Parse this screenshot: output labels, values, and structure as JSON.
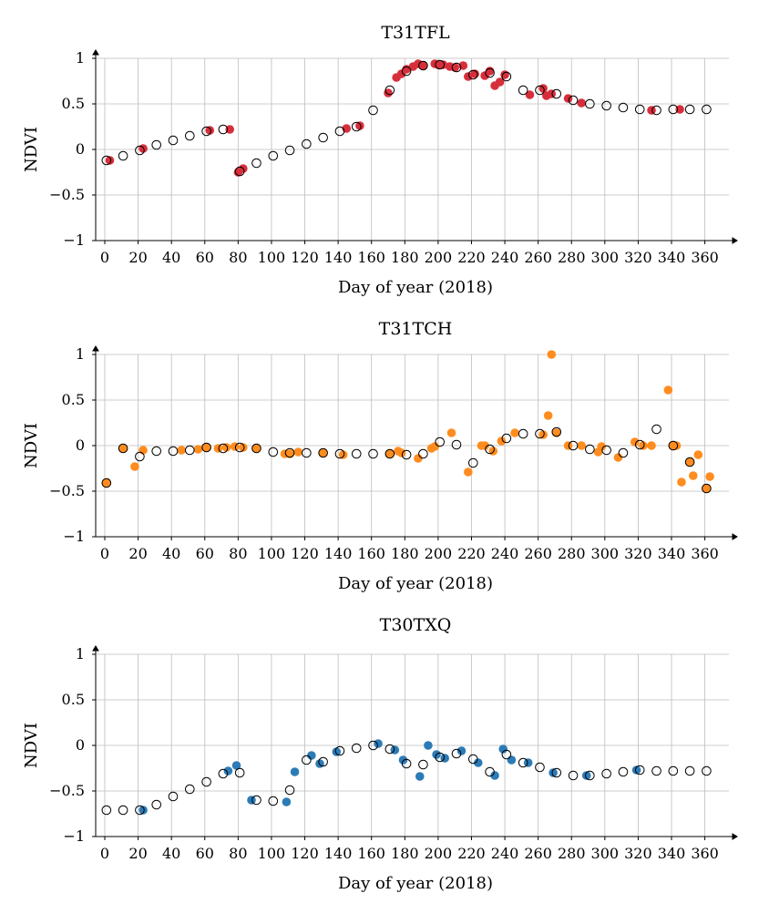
{
  "chart_data": [
    {
      "type": "scatter",
      "title": "T31TFL",
      "xlabel": "Day of year (2018)",
      "ylabel": "NDVI",
      "xlim": [
        0,
        369
      ],
      "ylim": [
        -1,
        1
      ],
      "xticks": [
        0,
        20,
        40,
        60,
        80,
        100,
        120,
        140,
        160,
        180,
        200,
        220,
        240,
        260,
        280,
        300,
        320,
        340,
        360
      ],
      "yticks": [
        -1,
        -0.5,
        0,
        0.5,
        1
      ],
      "ytick_labels": [
        "−1",
        "−0.5",
        "0",
        "0.5",
        "1"
      ],
      "grid": true,
      "series": [
        {
          "style": "filled",
          "color": "#d62f3b",
          "points": [
            [
              3,
              -0.12
            ],
            [
              23,
              0.01
            ],
            [
              63,
              0.21
            ],
            [
              75,
              0.22
            ],
            [
              80,
              -0.25
            ],
            [
              83,
              -0.21
            ],
            [
              145,
              0.23
            ],
            [
              153,
              0.26
            ],
            [
              170,
              0.62
            ],
            [
              175,
              0.79
            ],
            [
              178,
              0.83
            ],
            [
              181,
              0.88
            ],
            [
              185,
              0.91
            ],
            [
              188,
              0.94
            ],
            [
              191,
              0.92
            ],
            [
              198,
              0.94
            ],
            [
              200,
              0.93
            ],
            [
              203,
              0.93
            ],
            [
              207,
              0.91
            ],
            [
              210,
              0.9
            ],
            [
              215,
              0.92
            ],
            [
              218,
              0.8
            ],
            [
              222,
              0.83
            ],
            [
              228,
              0.81
            ],
            [
              231,
              0.86
            ],
            [
              234,
              0.7
            ],
            [
              237,
              0.74
            ],
            [
              240,
              0.82
            ],
            [
              255,
              0.6
            ],
            [
              263,
              0.67
            ],
            [
              265,
              0.59
            ],
            [
              268,
              0.61
            ],
            [
              278,
              0.56
            ],
            [
              286,
              0.51
            ],
            [
              328,
              0.43
            ],
            [
              345,
              0.44
            ]
          ]
        },
        {
          "style": "open",
          "color": "#000000",
          "points": [
            [
              1,
              -0.12
            ],
            [
              11,
              -0.07
            ],
            [
              21,
              -0.01
            ],
            [
              31,
              0.05
            ],
            [
              41,
              0.1
            ],
            [
              51,
              0.15
            ],
            [
              61,
              0.2
            ],
            [
              71,
              0.22
            ],
            [
              81,
              -0.24
            ],
            [
              91,
              -0.15
            ],
            [
              101,
              -0.07
            ],
            [
              111,
              -0.01
            ],
            [
              121,
              0.06
            ],
            [
              131,
              0.13
            ],
            [
              141,
              0.2
            ],
            [
              151,
              0.25
            ],
            [
              161,
              0.43
            ],
            [
              171,
              0.65
            ],
            [
              181,
              0.86
            ],
            [
              191,
              0.92
            ],
            [
              201,
              0.93
            ],
            [
              211,
              0.9
            ],
            [
              221,
              0.82
            ],
            [
              231,
              0.84
            ],
            [
              241,
              0.8
            ],
            [
              251,
              0.65
            ],
            [
              261,
              0.65
            ],
            [
              271,
              0.61
            ],
            [
              281,
              0.54
            ],
            [
              291,
              0.5
            ],
            [
              301,
              0.48
            ],
            [
              311,
              0.46
            ],
            [
              321,
              0.44
            ],
            [
              331,
              0.43
            ],
            [
              341,
              0.44
            ],
            [
              351,
              0.44
            ],
            [
              361,
              0.44
            ]
          ]
        }
      ]
    },
    {
      "type": "scatter",
      "title": "T31TCH",
      "xlabel": "Day of year (2018)",
      "ylabel": "NDVI",
      "xlim": [
        0,
        369
      ],
      "ylim": [
        -1,
        1
      ],
      "xticks": [
        0,
        20,
        40,
        60,
        80,
        100,
        120,
        140,
        160,
        180,
        200,
        220,
        240,
        260,
        280,
        300,
        320,
        340,
        360
      ],
      "yticks": [
        -1,
        -0.5,
        0,
        0.5,
        1
      ],
      "ytick_labels": [
        "−1",
        "−0.5",
        "0",
        "0.5",
        "1"
      ],
      "grid": true,
      "series": [
        {
          "style": "filled",
          "color": "#ff8c1e",
          "points": [
            [
              1,
              -0.41
            ],
            [
              11,
              -0.03
            ],
            [
              18,
              -0.23
            ],
            [
              23,
              -0.05
            ],
            [
              46,
              -0.05
            ],
            [
              56,
              -0.04
            ],
            [
              61,
              -0.02
            ],
            [
              68,
              -0.03
            ],
            [
              73,
              -0.02
            ],
            [
              78,
              -0.01
            ],
            [
              83,
              -0.02
            ],
            [
              91,
              -0.03
            ],
            [
              108,
              -0.09
            ],
            [
              111,
              -0.09
            ],
            [
              116,
              -0.07
            ],
            [
              131,
              -0.08
            ],
            [
              143,
              -0.1
            ],
            [
              171,
              -0.09
            ],
            [
              176,
              -0.06
            ],
            [
              178,
              -0.08
            ],
            [
              188,
              -0.14
            ],
            [
              196,
              -0.03
            ],
            [
              198,
              -0.01
            ],
            [
              208,
              0.14
            ],
            [
              218,
              -0.29
            ],
            [
              226,
              0.0
            ],
            [
              228,
              0.0
            ],
            [
              233,
              -0.06
            ],
            [
              238,
              0.05
            ],
            [
              246,
              0.14
            ],
            [
              263,
              0.12
            ],
            [
              266,
              0.33
            ],
            [
              268,
              1.0
            ],
            [
              271,
              0.14
            ],
            [
              278,
              0.0
            ],
            [
              286,
              0.0
            ],
            [
              296,
              -0.07
            ],
            [
              298,
              -0.01
            ],
            [
              308,
              -0.13
            ],
            [
              318,
              0.04
            ],
            [
              323,
              0.0
            ],
            [
              328,
              0.0
            ],
            [
              338,
              0.61
            ],
            [
              341,
              0.0
            ],
            [
              343,
              0.0
            ],
            [
              346,
              -0.4
            ],
            [
              351,
              -0.18
            ],
            [
              353,
              -0.33
            ],
            [
              356,
              -0.1
            ],
            [
              361,
              -0.47
            ],
            [
              363,
              -0.34
            ]
          ]
        },
        {
          "style": "open",
          "color": "#000000",
          "points": [
            [
              1,
              -0.41
            ],
            [
              11,
              -0.03
            ],
            [
              21,
              -0.12
            ],
            [
              31,
              -0.06
            ],
            [
              41,
              -0.06
            ],
            [
              51,
              -0.05
            ],
            [
              61,
              -0.02
            ],
            [
              71,
              -0.03
            ],
            [
              81,
              -0.02
            ],
            [
              91,
              -0.03
            ],
            [
              101,
              -0.07
            ],
            [
              111,
              -0.08
            ],
            [
              121,
              -0.08
            ],
            [
              131,
              -0.08
            ],
            [
              141,
              -0.09
            ],
            [
              151,
              -0.09
            ],
            [
              161,
              -0.09
            ],
            [
              171,
              -0.09
            ],
            [
              181,
              -0.1
            ],
            [
              191,
              -0.09
            ],
            [
              201,
              0.04
            ],
            [
              211,
              0.01
            ],
            [
              221,
              -0.19
            ],
            [
              231,
              -0.04
            ],
            [
              241,
              0.08
            ],
            [
              251,
              0.13
            ],
            [
              261,
              0.13
            ],
            [
              271,
              0.15
            ],
            [
              281,
              0.0
            ],
            [
              291,
              -0.04
            ],
            [
              301,
              -0.05
            ],
            [
              311,
              -0.08
            ],
            [
              321,
              0.01
            ],
            [
              331,
              0.18
            ],
            [
              341,
              0.0
            ],
            [
              351,
              -0.18
            ],
            [
              361,
              -0.47
            ]
          ]
        }
      ]
    },
    {
      "type": "scatter",
      "title": "T30TXQ",
      "xlabel": "Day of year (2018)",
      "ylabel": "NDVI",
      "xlim": [
        0,
        369
      ],
      "ylim": [
        -1,
        1
      ],
      "xticks": [
        0,
        20,
        40,
        60,
        80,
        100,
        120,
        140,
        160,
        180,
        200,
        220,
        240,
        260,
        280,
        300,
        320,
        340,
        360
      ],
      "yticks": [
        -1,
        -0.5,
        0,
        0.5,
        1
      ],
      "ytick_labels": [
        "−1",
        "−0.5",
        "0",
        "0.5",
        "1"
      ],
      "grid": true,
      "series": [
        {
          "style": "filled",
          "color": "#2c7bb6",
          "points": [
            [
              23,
              -0.71
            ],
            [
              74,
              -0.28
            ],
            [
              79,
              -0.22
            ],
            [
              88,
              -0.6
            ],
            [
              109,
              -0.62
            ],
            [
              114,
              -0.29
            ],
            [
              124,
              -0.11
            ],
            [
              129,
              -0.2
            ],
            [
              139,
              -0.07
            ],
            [
              164,
              0.02
            ],
            [
              174,
              -0.05
            ],
            [
              179,
              -0.16
            ],
            [
              189,
              -0.34
            ],
            [
              194,
              0.0
            ],
            [
              199,
              -0.1
            ],
            [
              204,
              -0.14
            ],
            [
              214,
              -0.06
            ],
            [
              224,
              -0.19
            ],
            [
              234,
              -0.33
            ],
            [
              239,
              -0.04
            ],
            [
              244,
              -0.16
            ],
            [
              254,
              -0.19
            ],
            [
              269,
              -0.3
            ],
            [
              289,
              -0.33
            ],
            [
              319,
              -0.27
            ]
          ]
        },
        {
          "style": "open",
          "color": "#000000",
          "points": [
            [
              1,
              -0.71
            ],
            [
              11,
              -0.71
            ],
            [
              21,
              -0.71
            ],
            [
              31,
              -0.65
            ],
            [
              41,
              -0.56
            ],
            [
              51,
              -0.48
            ],
            [
              61,
              -0.4
            ],
            [
              71,
              -0.31
            ],
            [
              81,
              -0.3
            ],
            [
              91,
              -0.6
            ],
            [
              101,
              -0.61
            ],
            [
              111,
              -0.49
            ],
            [
              121,
              -0.16
            ],
            [
              131,
              -0.18
            ],
            [
              141,
              -0.06
            ],
            [
              151,
              -0.03
            ],
            [
              161,
              0.0
            ],
            [
              171,
              -0.04
            ],
            [
              181,
              -0.2
            ],
            [
              191,
              -0.21
            ],
            [
              201,
              -0.13
            ],
            [
              211,
              -0.09
            ],
            [
              221,
              -0.15
            ],
            [
              231,
              -0.29
            ],
            [
              241,
              -0.1
            ],
            [
              251,
              -0.19
            ],
            [
              261,
              -0.24
            ],
            [
              271,
              -0.3
            ],
            [
              281,
              -0.33
            ],
            [
              291,
              -0.33
            ],
            [
              301,
              -0.31
            ],
            [
              311,
              -0.29
            ],
            [
              321,
              -0.27
            ],
            [
              331,
              -0.28
            ],
            [
              341,
              -0.28
            ],
            [
              351,
              -0.28
            ],
            [
              361,
              -0.28
            ]
          ]
        }
      ]
    }
  ]
}
